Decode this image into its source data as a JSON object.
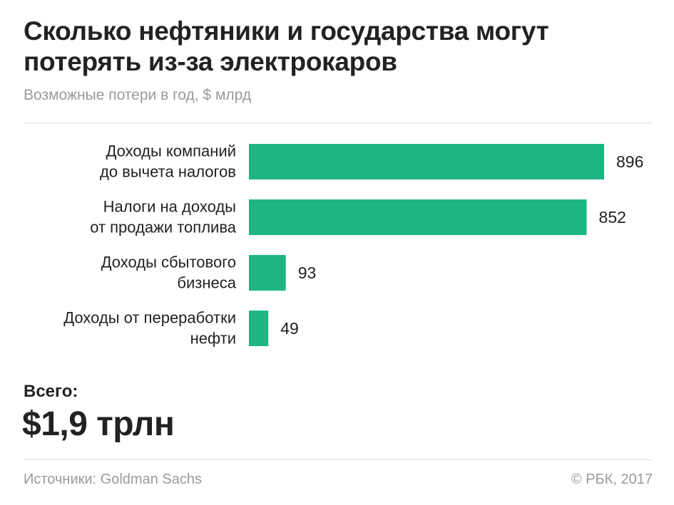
{
  "title_lines": [
    "Сколько нефтяники и государства могут",
    "потерять из-за электрокаров"
  ],
  "subtitle": "Возможные потери в год, $ млрд",
  "total": {
    "label": "Всего:",
    "value": "$1,9 трлн"
  },
  "footer": {
    "source": "Источники: Goldman Sachs",
    "copyright": "© РБК, 2017"
  },
  "colors": {
    "bar": "#1db682",
    "text": "#222222",
    "muted": "#9a9a9a",
    "divider": "#dddddd"
  },
  "chart_data": {
    "type": "bar",
    "orientation": "horizontal",
    "categories": [
      [
        "Доходы компаний",
        "до вычета налогов"
      ],
      [
        "Налоги на доходы",
        "от продажи топлива"
      ],
      [
        "Доходы сбытового",
        "бизнеса"
      ],
      [
        "Доходы от переработки",
        "нефти"
      ]
    ],
    "values": [
      896,
      852,
      93,
      49
    ],
    "value_labels": [
      "896",
      "852",
      "93",
      "49"
    ],
    "xlim": [
      0,
      896
    ],
    "grid": false,
    "legend": "none"
  }
}
